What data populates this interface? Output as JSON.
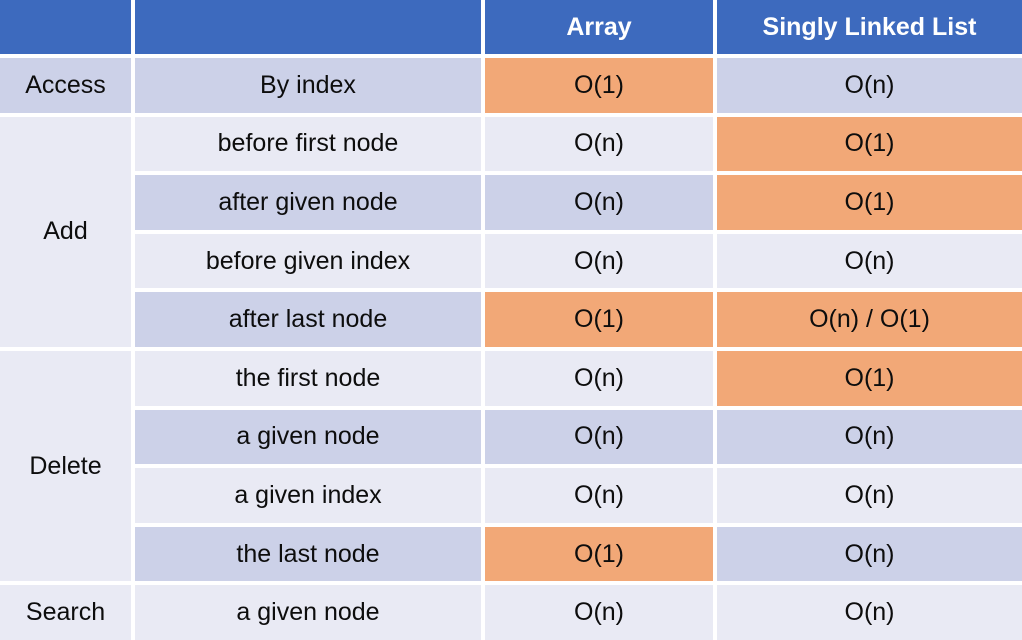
{
  "colors": {
    "header-bg": "#3d6abe",
    "header-text": "#ffffff",
    "band-dark": "#ccd1e8",
    "band-light": "#e9eaf4",
    "highlight-orange": "#f2a877",
    "grid-line": "#ffffff",
    "cell-text": "#0d0d0d"
  },
  "chart_data": {
    "type": "table",
    "columns": [
      "",
      "",
      "Array",
      "Singly Linked List"
    ],
    "row_groups": [
      {
        "label": "Access",
        "span": 1
      },
      {
        "label": "Add",
        "span": 4
      },
      {
        "label": "Delete",
        "span": 4
      },
      {
        "label": "Search",
        "span": 1
      }
    ],
    "rows": [
      {
        "group": "Access",
        "operation": "By index",
        "array": "O(1)",
        "array_highlight": true,
        "sll": "O(n)",
        "sll_highlight": false
      },
      {
        "group": "Add",
        "operation": "before first node",
        "array": "O(n)",
        "array_highlight": false,
        "sll": "O(1)",
        "sll_highlight": true
      },
      {
        "group": "Add",
        "operation": "after given node",
        "array": "O(n)",
        "array_highlight": false,
        "sll": "O(1)",
        "sll_highlight": true
      },
      {
        "group": "Add",
        "operation": "before given index",
        "array": "O(n)",
        "array_highlight": false,
        "sll": "O(n)",
        "sll_highlight": false
      },
      {
        "group": "Add",
        "operation": "after last node",
        "array": "O(1)",
        "array_highlight": true,
        "sll": "O(n) / O(1)",
        "sll_highlight": true
      },
      {
        "group": "Delete",
        "operation": "the first node",
        "array": "O(n)",
        "array_highlight": false,
        "sll": "O(1)",
        "sll_highlight": true
      },
      {
        "group": "Delete",
        "operation": "a given node",
        "array": "O(n)",
        "array_highlight": false,
        "sll": "O(n)",
        "sll_highlight": false
      },
      {
        "group": "Delete",
        "operation": "a given index",
        "array": "O(n)",
        "array_highlight": false,
        "sll": "O(n)",
        "sll_highlight": false
      },
      {
        "group": "Delete",
        "operation": "the last node",
        "array": "O(1)",
        "array_highlight": true,
        "sll": "O(n)",
        "sll_highlight": false
      },
      {
        "group": "Search",
        "operation": "a given node",
        "array": "O(n)",
        "array_highlight": false,
        "sll": "O(n)",
        "sll_highlight": false
      }
    ]
  }
}
